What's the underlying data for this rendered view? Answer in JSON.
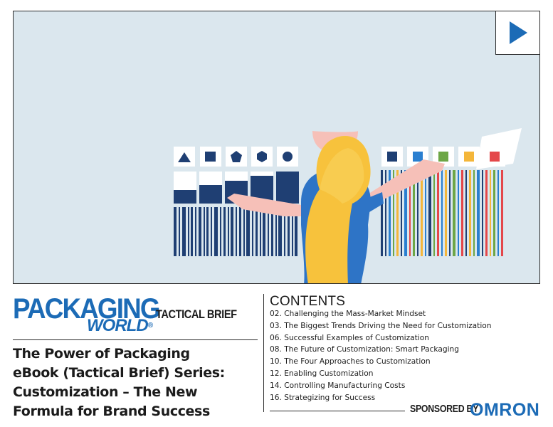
{
  "logo": {
    "line1": "PACKAGING",
    "line2": "WORLD",
    "mark": "®"
  },
  "series_label": "TACTICAL BRIEF",
  "title_lines": [
    "The Power of Packaging",
    "eBook (Tactical Brief) Series:",
    "Customization – The New",
    "Formula for Brand Success"
  ],
  "contents": {
    "heading": "CONTENTS",
    "items": [
      "02. Challenging the Mass-Market Mindset",
      "03. The Biggest Trends Driving the Need for Customization",
      "06. Successful Examples of Customization",
      "08. The Future of Customization: Smart Packaging",
      "10. The Four Approaches to Customization",
      "12. Enabling Customization",
      "14. Controlling Manufacturing Costs",
      "16. Strategizing for Success"
    ]
  },
  "sponsor": {
    "label": "SPONSORED BY",
    "name": "OMRON"
  },
  "icons": {
    "play": "play-icon"
  },
  "colors": {
    "brand_blue": "#1c6bb6",
    "navy": "#1f3f73",
    "hero_bg": "#dbe7ee",
    "hair": "#f7c23c",
    "shirt": "#2e74c6"
  }
}
